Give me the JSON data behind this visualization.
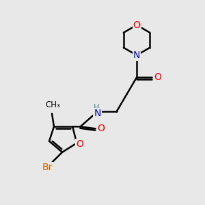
{
  "background_color": "#e8e8e8",
  "bond_color": "#000000",
  "atom_colors": {
    "O": "#ff0000",
    "N": "#0000bb",
    "Br": "#cc6600",
    "C": "#000000",
    "H": "#558888"
  },
  "lw": 1.8,
  "figsize": [
    3.0,
    3.0
  ],
  "dpi": 100
}
